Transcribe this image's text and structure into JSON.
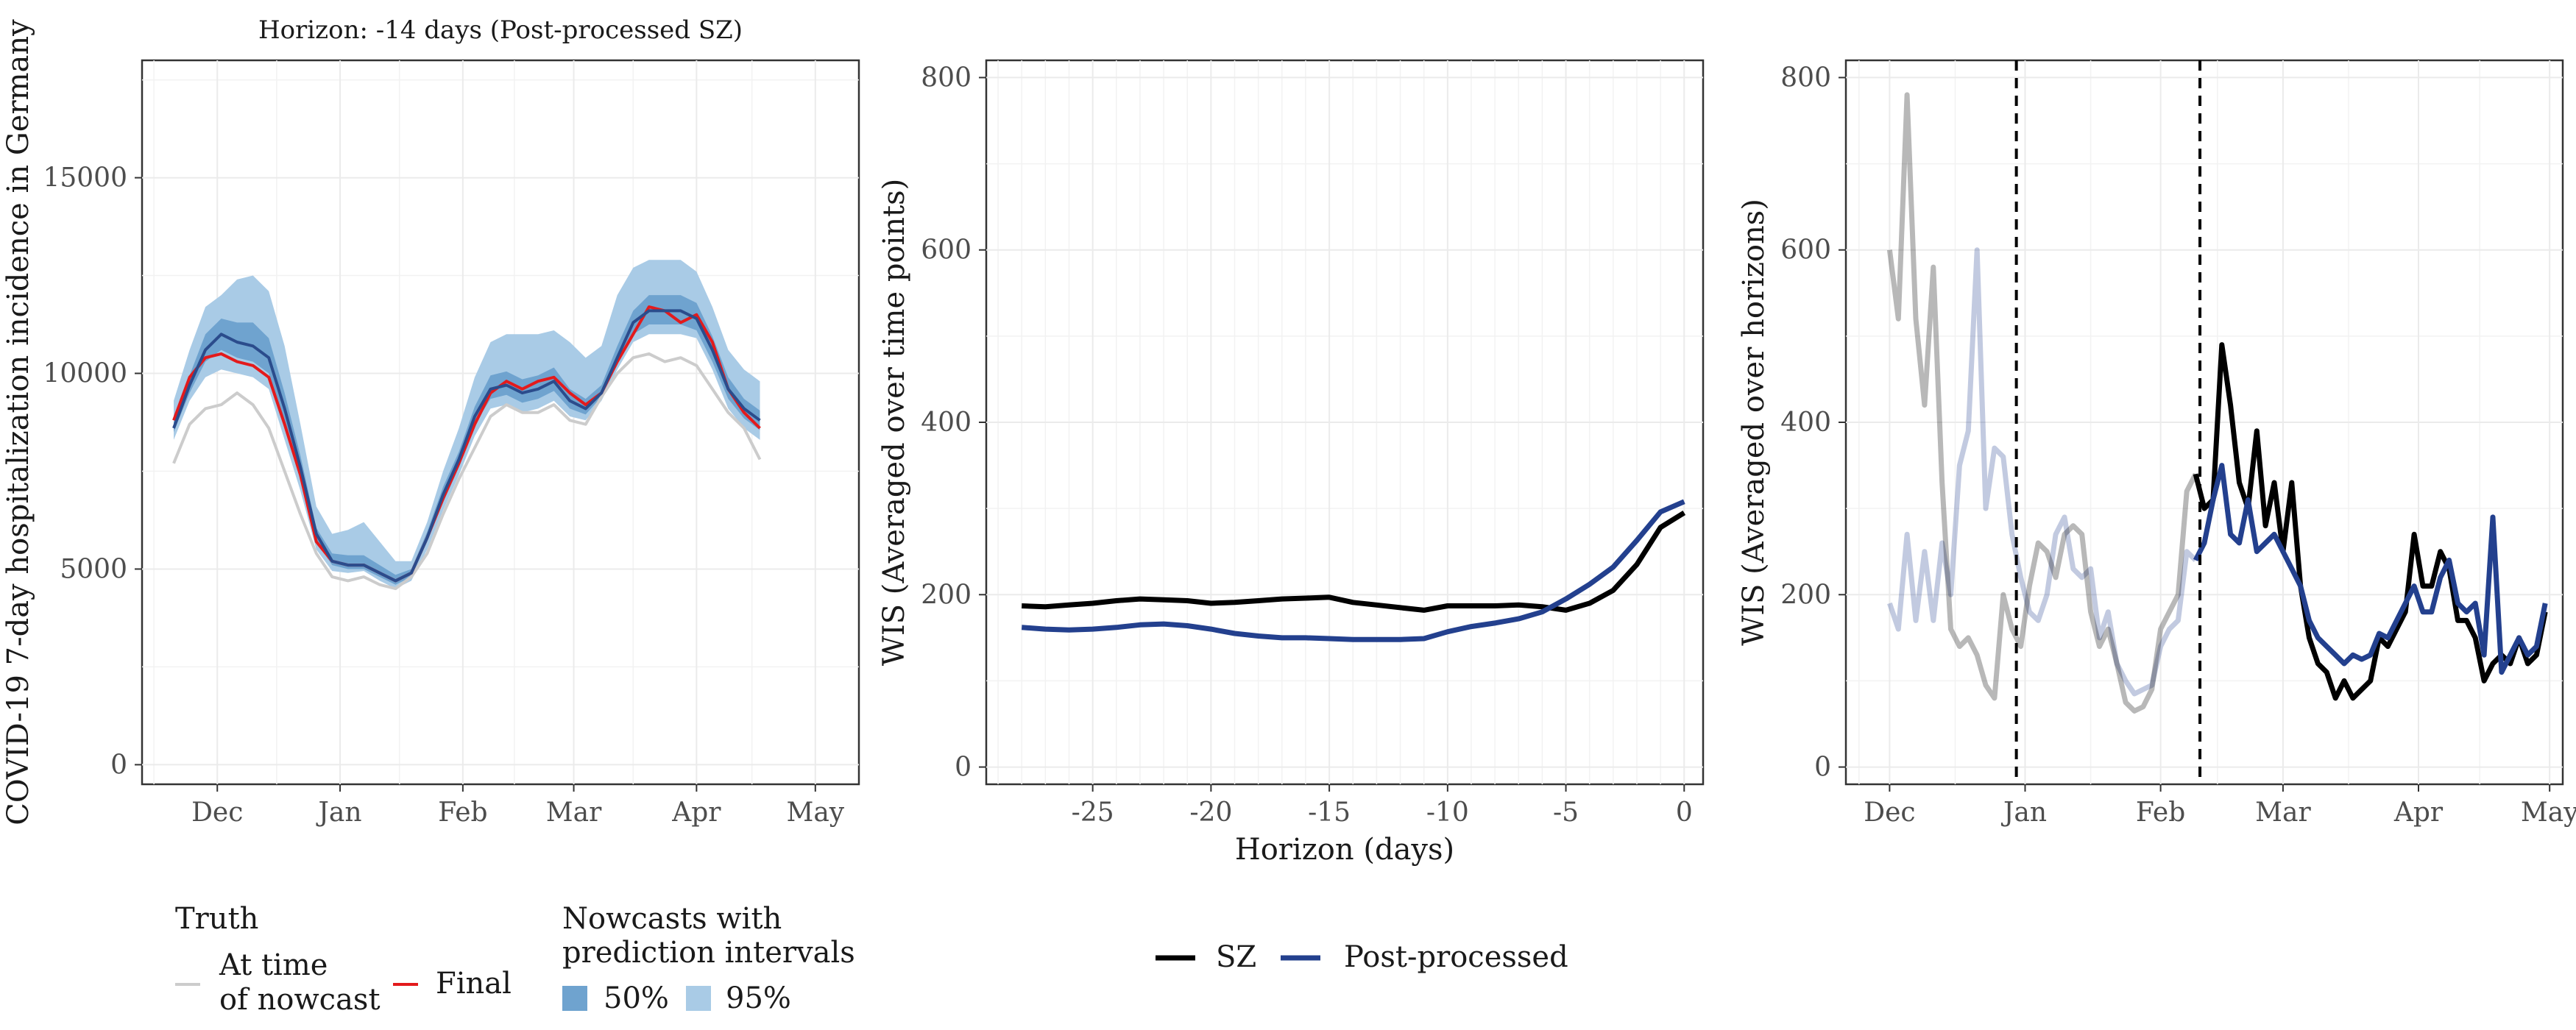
{
  "legend_left": {
    "truth_title": "Truth",
    "at_time_line1": "At time",
    "at_time_line2": "of nowcast",
    "final": "Final",
    "nowcast_title_line1": "Nowcasts with",
    "nowcast_title_line2": "prediction intervals",
    "pi50": "50%",
    "pi95": "95%"
  },
  "legend_right": {
    "sz": "SZ",
    "pp": "Post-processed"
  },
  "colors": {
    "truth_at_time": "#cccccc",
    "truth_final": "#e31a1c",
    "nowcast_median": "#2b4c8c",
    "pi50": "#6fa3cf",
    "pi95": "#a9cbe6",
    "sz": "#000000",
    "pp": "#23408e"
  },
  "chart_data": [
    {
      "type": "line",
      "title": "Horizon: -14 days (Post-processed SZ)",
      "ylabel": "COVID-19 7-day hospitalization incidence in Germany",
      "xlabel": "",
      "x_ticks": [
        "Dec",
        "Jan",
        "Feb",
        "Mar",
        "Apr",
        "May"
      ],
      "ylim": [
        -500,
        18000
      ],
      "y_ticks": [
        0,
        5000,
        10000,
        15000
      ],
      "grid": true,
      "x": [
        "2021-11-20",
        "2021-11-24",
        "2021-11-28",
        "2021-12-02",
        "2021-12-06",
        "2021-12-10",
        "2021-12-14",
        "2021-12-18",
        "2021-12-22",
        "2021-12-26",
        "2021-12-30",
        "2022-01-03",
        "2022-01-07",
        "2022-01-11",
        "2022-01-15",
        "2022-01-19",
        "2022-01-23",
        "2022-01-27",
        "2022-01-31",
        "2022-02-04",
        "2022-02-08",
        "2022-02-12",
        "2022-02-16",
        "2022-02-20",
        "2022-02-24",
        "2022-02-28",
        "2022-03-04",
        "2022-03-08",
        "2022-03-12",
        "2022-03-16",
        "2022-03-20",
        "2022-03-24",
        "2022-03-28",
        "2022-04-01",
        "2022-04-05",
        "2022-04-09",
        "2022-04-13",
        "2022-04-17"
      ],
      "series": [
        {
          "name": "At time of nowcast",
          "values": [
            7700,
            8700,
            9100,
            9200,
            9500,
            9200,
            8600,
            7500,
            6400,
            5400,
            4800,
            4700,
            4800,
            4600,
            4500,
            4800,
            5400,
            6400,
            7300,
            8100,
            8900,
            9200,
            9000,
            9000,
            9200,
            8800,
            8700,
            9400,
            10000,
            10400,
            10500,
            10300,
            10400,
            10200,
            9600,
            9000,
            8600,
            7800
          ]
        },
        {
          "name": "Final",
          "values": [
            8800,
            9900,
            10400,
            10500,
            10300,
            10200,
            9900,
            8700,
            7400,
            5700,
            5200,
            5100,
            5100,
            4900,
            4700,
            4900,
            5800,
            6800,
            7700,
            8700,
            9500,
            9800,
            9600,
            9800,
            9900,
            9500,
            9200,
            9500,
            10300,
            11000,
            11700,
            11600,
            11300,
            11500,
            10800,
            9600,
            9000,
            8600
          ]
        },
        {
          "name": "Nowcast median",
          "values": [
            8600,
            9700,
            10600,
            11000,
            10800,
            10700,
            10400,
            9100,
            7600,
            5900,
            5200,
            5100,
            5100,
            4900,
            4700,
            4900,
            5800,
            6900,
            7800,
            8900,
            9600,
            9700,
            9500,
            9600,
            9800,
            9300,
            9100,
            9500,
            10400,
            11300,
            11600,
            11600,
            11600,
            11400,
            10600,
            9600,
            9100,
            8800
          ]
        },
        {
          "name": "95% lower",
          "values": [
            8300,
            9300,
            9900,
            10100,
            10000,
            9900,
            9600,
            8300,
            7000,
            5500,
            4950,
            4900,
            4950,
            4700,
            4500,
            4700,
            5500,
            6500,
            7400,
            8400,
            9100,
            9200,
            9000,
            9100,
            9300,
            8900,
            8800,
            9300,
            10100,
            10800,
            11000,
            11000,
            11000,
            10900,
            10100,
            9100,
            8600,
            8300
          ]
        },
        {
          "name": "95% upper",
          "values": [
            9300,
            10600,
            11700,
            12000,
            12400,
            12500,
            12100,
            10700,
            8700,
            6600,
            5900,
            6000,
            6200,
            5700,
            5200,
            5200,
            6200,
            7500,
            8600,
            9900,
            10800,
            11000,
            11000,
            11000,
            11100,
            10800,
            10400,
            10700,
            12000,
            12700,
            12900,
            12900,
            12900,
            12600,
            11700,
            10600,
            10100,
            9800
          ]
        },
        {
          "name": "50% lower",
          "values": [
            8500,
            9500,
            10300,
            10600,
            10400,
            10300,
            10000,
            8700,
            7300,
            5700,
            5100,
            5000,
            5000,
            4800,
            4600,
            4800,
            5700,
            6700,
            7600,
            8700,
            9350,
            9450,
            9250,
            9350,
            9550,
            9100,
            8950,
            9400,
            10250,
            11000,
            11250,
            11250,
            11250,
            11100,
            10300,
            9350,
            8850,
            8550
          ]
        },
        {
          "name": "50% upper",
          "values": [
            8750,
            9950,
            11000,
            11400,
            11300,
            11300,
            10900,
            9500,
            7900,
            6050,
            5400,
            5350,
            5350,
            5100,
            4850,
            5000,
            5950,
            7100,
            8000,
            9150,
            9950,
            10050,
            9850,
            9950,
            10150,
            9600,
            9350,
            9700,
            10700,
            11600,
            12000,
            12000,
            12000,
            11800,
            10950,
            9900,
            9350,
            9050
          ]
        }
      ]
    },
    {
      "type": "line",
      "title": "",
      "xlabel": "Horizon (days)",
      "ylabel": "WIS (Averaged over time points)",
      "xlim": [
        -29.5,
        0.8
      ],
      "ylim": [
        -20,
        820
      ],
      "x_ticks": [
        -25,
        -20,
        -15,
        -10,
        -5,
        0
      ],
      "y_ticks": [
        0,
        200,
        400,
        600,
        800
      ],
      "grid": true,
      "x": [
        -28,
        -27,
        -26,
        -25,
        -24,
        -23,
        -22,
        -21,
        -20,
        -19,
        -18,
        -17,
        -16,
        -15,
        -14,
        -13,
        -12,
        -11,
        -10,
        -9,
        -8,
        -7,
        -6,
        -5,
        -4,
        -3,
        -2,
        -1,
        0
      ],
      "series": [
        {
          "name": "SZ",
          "values": [
            187,
            186,
            188,
            190,
            193,
            195,
            194,
            193,
            190,
            191,
            193,
            195,
            196,
            197,
            191,
            188,
            185,
            182,
            187,
            187,
            187,
            188,
            186,
            182,
            190,
            205,
            235,
            278,
            295
          ]
        },
        {
          "name": "Post-processed",
          "values": [
            162,
            160,
            159,
            160,
            162,
            165,
            166,
            164,
            160,
            155,
            152,
            150,
            150,
            149,
            148,
            148,
            148,
            149,
            157,
            163,
            167,
            172,
            180,
            195,
            212,
            232,
            263,
            296,
            308
          ]
        }
      ]
    },
    {
      "type": "line",
      "title": "",
      "xlabel": "",
      "ylabel": "WIS (Averaged over horizons)",
      "ylim": [
        -20,
        820
      ],
      "x_ticks": [
        "Dec",
        "Jan",
        "Feb",
        "Mar",
        "Apr",
        "May"
      ],
      "y_ticks": [
        0,
        200,
        400,
        600,
        800
      ],
      "grid": true,
      "reference_lines": [
        "2021-12-30",
        "2022-02-10"
      ],
      "x": [
        "2021-12-01",
        "2021-12-03",
        "2021-12-05",
        "2021-12-07",
        "2021-12-09",
        "2021-12-11",
        "2021-12-13",
        "2021-12-15",
        "2021-12-17",
        "2021-12-19",
        "2021-12-21",
        "2021-12-23",
        "2021-12-25",
        "2021-12-27",
        "2021-12-29",
        "2021-12-31",
        "2022-01-02",
        "2022-01-04",
        "2022-01-06",
        "2022-01-08",
        "2022-01-10",
        "2022-01-12",
        "2022-01-14",
        "2022-01-16",
        "2022-01-18",
        "2022-01-20",
        "2022-01-22",
        "2022-01-24",
        "2022-01-26",
        "2022-01-28",
        "2022-01-30",
        "2022-02-01",
        "2022-02-03",
        "2022-02-05",
        "2022-02-07",
        "2022-02-09",
        "2022-02-11",
        "2022-02-13",
        "2022-02-15",
        "2022-02-17",
        "2022-02-19",
        "2022-02-21",
        "2022-02-23",
        "2022-02-25",
        "2022-02-27",
        "2022-03-01",
        "2022-03-03",
        "2022-03-05",
        "2022-03-07",
        "2022-03-09",
        "2022-03-11",
        "2022-03-13",
        "2022-03-15",
        "2022-03-17",
        "2022-03-19",
        "2022-03-21",
        "2022-03-23",
        "2022-03-25",
        "2022-03-27",
        "2022-03-29",
        "2022-03-31",
        "2022-04-02",
        "2022-04-04",
        "2022-04-06",
        "2022-04-08",
        "2022-04-10",
        "2022-04-12",
        "2022-04-14",
        "2022-04-16",
        "2022-04-18",
        "2022-04-20",
        "2022-04-22",
        "2022-04-24",
        "2022-04-26",
        "2022-04-28",
        "2022-04-30"
      ],
      "series": [
        {
          "name": "SZ",
          "values": [
            600,
            520,
            780,
            520,
            420,
            580,
            330,
            160,
            140,
            150,
            130,
            95,
            80,
            200,
            160,
            140,
            210,
            260,
            250,
            220,
            270,
            280,
            270,
            180,
            140,
            160,
            120,
            75,
            65,
            70,
            90,
            160,
            180,
            200,
            320,
            340,
            300,
            310,
            490,
            420,
            330,
            300,
            390,
            280,
            330,
            250,
            330,
            210,
            150,
            120,
            110,
            80,
            100,
            80,
            90,
            100,
            150,
            140,
            160,
            180,
            270,
            210,
            210,
            250,
            230,
            170,
            170,
            150,
            100,
            120,
            130,
            120,
            150,
            120,
            130,
            180
          ]
        },
        {
          "name": "Post-processed",
          "values": [
            190,
            160,
            270,
            170,
            250,
            170,
            260,
            200,
            350,
            390,
            600,
            300,
            370,
            360,
            270,
            220,
            180,
            170,
            200,
            270,
            290,
            230,
            220,
            230,
            150,
            180,
            120,
            100,
            85,
            90,
            95,
            140,
            160,
            170,
            250,
            240,
            260,
            310,
            350,
            270,
            260,
            310,
            250,
            260,
            270,
            250,
            230,
            210,
            170,
            150,
            140,
            130,
            120,
            130,
            125,
            130,
            155,
            150,
            170,
            190,
            210,
            180,
            180,
            220,
            240,
            190,
            180,
            190,
            130,
            290,
            110,
            130,
            150,
            130,
            140,
            190
          ]
        }
      ]
    }
  ]
}
